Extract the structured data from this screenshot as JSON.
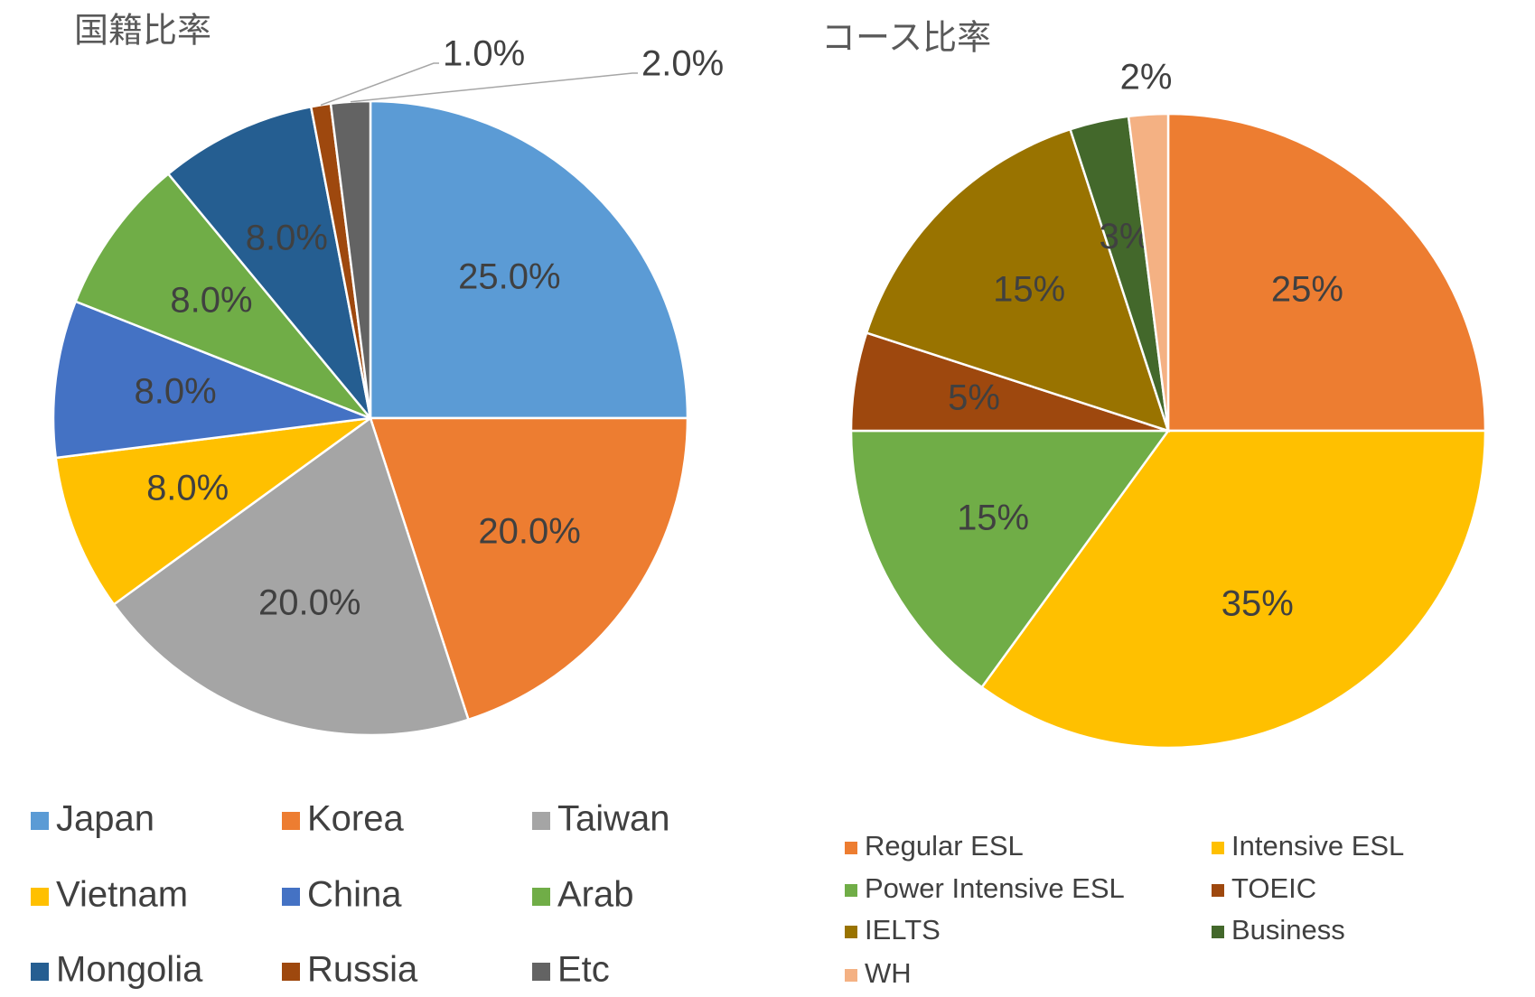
{
  "chart_data": [
    {
      "type": "pie",
      "title": "国籍比率",
      "categories": [
        "Japan",
        "Korea",
        "Taiwan",
        "Vietnam",
        "China",
        "Arab",
        "Mongolia",
        "Russia",
        "Etc"
      ],
      "values": [
        25,
        20,
        20,
        8,
        8,
        8,
        8,
        1,
        2
      ],
      "value_labels": [
        "25.0%",
        "20.0%",
        "20.0%",
        "8.0%",
        "8.0%",
        "8.0%",
        "8.0%",
        "1.0%",
        "2.0%"
      ],
      "colors": [
        "#5b9bd5",
        "#ed7d31",
        "#a5a5a5",
        "#ffc000",
        "#4472c4",
        "#70ad47",
        "#255e91",
        "#9e480e",
        "#636363"
      ]
    },
    {
      "type": "pie",
      "title": "コース比率",
      "categories": [
        "Regular ESL",
        "Intensive ESL",
        "Power Intensive ESL",
        "TOEIC",
        "IELTS",
        "Business",
        "WH"
      ],
      "values": [
        25,
        35,
        15,
        5,
        15,
        3,
        2
      ],
      "value_labels": [
        "25%",
        "35%",
        "15%",
        "5%",
        "15%",
        "3%",
        "2%"
      ],
      "colors": [
        "#ed7d31",
        "#ffc000",
        "#70ad47",
        "#9e480e",
        "#997300",
        "#43682b",
        "#f4b183"
      ]
    }
  ]
}
